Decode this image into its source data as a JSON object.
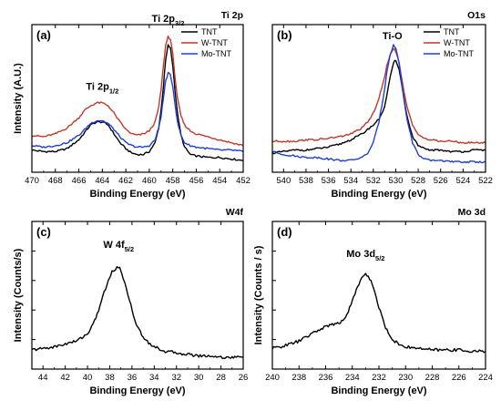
{
  "chart_data": [
    {
      "id": "a",
      "type": "line",
      "letter": "(a)",
      "title": "Ti 2p",
      "xlabel": "Binding Energy (eV)",
      "ylabel": "Intensity (A.U.)",
      "xlim": [
        470,
        452
      ],
      "xticks": [
        470,
        468,
        466,
        464,
        462,
        460,
        458,
        456,
        454,
        452
      ],
      "ylim": [
        0,
        1
      ],
      "show_y_ticks": false,
      "legend": "top-right",
      "annotations": [
        {
          "text": "Ti 2p",
          "sub": "1/2",
          "x": 464.0,
          "y": 0.56
        },
        {
          "text": "Ti 2p",
          "sub": "3/2",
          "x": 458.4,
          "y": 1.02
        }
      ],
      "series": [
        {
          "name": "TNT",
          "color": "#000000",
          "x": [
            470,
            469,
            468,
            467,
            466,
            465.5,
            465,
            464.5,
            464,
            463.5,
            463,
            462.5,
            462,
            461.5,
            461,
            460.5,
            460,
            459.5,
            459.2,
            459,
            458.8,
            458.6,
            458.4,
            458.2,
            458,
            457.8,
            457.6,
            457.3,
            457,
            456.5,
            456,
            455,
            454,
            453,
            452
          ],
          "y": [
            0.15,
            0.14,
            0.14,
            0.16,
            0.22,
            0.27,
            0.32,
            0.34,
            0.34,
            0.32,
            0.26,
            0.2,
            0.16,
            0.13,
            0.12,
            0.12,
            0.14,
            0.2,
            0.3,
            0.42,
            0.58,
            0.76,
            0.86,
            0.84,
            0.72,
            0.55,
            0.4,
            0.25,
            0.17,
            0.12,
            0.11,
            0.1,
            0.1,
            0.09,
            0.08
          ]
        },
        {
          "name": "W-TNT",
          "color": "#c0392b",
          "x": [
            470,
            469,
            468,
            467,
            466,
            465.5,
            465,
            464.5,
            464,
            463.5,
            463,
            462.5,
            462,
            461.5,
            461,
            460.5,
            460,
            459.5,
            459.2,
            459,
            458.8,
            458.6,
            458.4,
            458.2,
            458,
            457.8,
            457.6,
            457.3,
            457,
            456.5,
            456,
            455,
            454,
            453,
            452
          ],
          "y": [
            0.25,
            0.24,
            0.26,
            0.3,
            0.37,
            0.42,
            0.45,
            0.47,
            0.47,
            0.45,
            0.4,
            0.34,
            0.29,
            0.26,
            0.25,
            0.26,
            0.28,
            0.34,
            0.44,
            0.56,
            0.72,
            0.86,
            0.92,
            0.9,
            0.8,
            0.64,
            0.5,
            0.38,
            0.32,
            0.28,
            0.26,
            0.24,
            0.22,
            0.2,
            0.18
          ]
        },
        {
          "name": "Mo-TNT",
          "color": "#1f3fd6",
          "x": [
            470,
            469,
            468,
            467,
            466,
            465.5,
            465,
            464.5,
            464,
            463.5,
            463,
            462.5,
            462,
            461.5,
            461,
            460.5,
            460,
            459.5,
            459.2,
            459,
            458.8,
            458.6,
            458.4,
            458.2,
            458,
            457.8,
            457.6,
            457.3,
            457,
            456.5,
            456,
            455,
            454,
            453,
            452
          ],
          "y": [
            0.18,
            0.17,
            0.18,
            0.2,
            0.25,
            0.29,
            0.33,
            0.35,
            0.35,
            0.33,
            0.29,
            0.24,
            0.2,
            0.18,
            0.17,
            0.17,
            0.18,
            0.22,
            0.3,
            0.38,
            0.5,
            0.62,
            0.67,
            0.66,
            0.58,
            0.46,
            0.34,
            0.25,
            0.2,
            0.18,
            0.17,
            0.16,
            0.15,
            0.15,
            0.14
          ]
        }
      ]
    },
    {
      "id": "b",
      "type": "line",
      "letter": "(b)",
      "title": "O1s",
      "xlabel": "Binding Energy (eV)",
      "ylabel": "",
      "xlim": [
        541,
        522
      ],
      "xticks": [
        540,
        538,
        536,
        534,
        532,
        530,
        528,
        526,
        524,
        522
      ],
      "ylim": [
        0,
        1
      ],
      "show_y_ticks": false,
      "legend": "top-right",
      "annotations": [
        {
          "text": "Ti-O",
          "sub": "",
          "x": 530.3,
          "y": 0.9
        }
      ],
      "series": [
        {
          "name": "TNT",
          "color": "#000000",
          "x": [
            541,
            540,
            539,
            538,
            537,
            536,
            535,
            534,
            533,
            532.5,
            532,
            531.5,
            531,
            530.8,
            530.5,
            530.2,
            530,
            529.7,
            529.4,
            529,
            528.5,
            528,
            527.5,
            527,
            526,
            525,
            524,
            523,
            522
          ],
          "y": [
            0.13,
            0.14,
            0.15,
            0.15,
            0.16,
            0.17,
            0.19,
            0.22,
            0.26,
            0.29,
            0.32,
            0.36,
            0.44,
            0.52,
            0.64,
            0.74,
            0.76,
            0.7,
            0.56,
            0.38,
            0.24,
            0.18,
            0.16,
            0.15,
            0.15,
            0.14,
            0.14,
            0.15,
            0.15
          ]
        },
        {
          "name": "W-TNT",
          "color": "#c0392b",
          "x": [
            541,
            540,
            539,
            538,
            537,
            536,
            535,
            534,
            533,
            532.5,
            532,
            531.5,
            531,
            530.8,
            530.5,
            530.2,
            530,
            529.7,
            529.4,
            529,
            528.5,
            528,
            527.5,
            527,
            526,
            525,
            524,
            523,
            522
          ],
          "y": [
            0.21,
            0.21,
            0.21,
            0.22,
            0.22,
            0.23,
            0.24,
            0.26,
            0.3,
            0.34,
            0.4,
            0.5,
            0.64,
            0.72,
            0.8,
            0.84,
            0.82,
            0.74,
            0.6,
            0.44,
            0.32,
            0.26,
            0.23,
            0.22,
            0.21,
            0.21,
            0.2,
            0.2,
            0.2
          ]
        },
        {
          "name": "Mo-TNT",
          "color": "#1f3fd6",
          "x": [
            541,
            540,
            539,
            538,
            537,
            536,
            535,
            534,
            533,
            532.5,
            532,
            531.5,
            531,
            530.8,
            530.5,
            530.2,
            530,
            529.7,
            529.4,
            529,
            528.5,
            528,
            527.5,
            527,
            526,
            525,
            524,
            523,
            522
          ],
          "y": [
            0.14,
            0.12,
            0.11,
            0.1,
            0.1,
            0.09,
            0.08,
            0.08,
            0.1,
            0.13,
            0.2,
            0.34,
            0.56,
            0.68,
            0.8,
            0.86,
            0.84,
            0.74,
            0.56,
            0.36,
            0.2,
            0.12,
            0.09,
            0.08,
            0.08,
            0.07,
            0.07,
            0.07,
            0.07
          ]
        }
      ]
    },
    {
      "id": "c",
      "type": "line",
      "letter": "(c)",
      "title": "W4f",
      "xlabel": "Binding Energy (eV)",
      "ylabel": "Intensity (Counts/s)",
      "xlim": [
        45,
        26
      ],
      "xticks": [
        44,
        42,
        40,
        38,
        36,
        34,
        32,
        30,
        28,
        26
      ],
      "ylim": [
        0,
        1
      ],
      "show_y_ticks": true,
      "legend": "",
      "annotations": [
        {
          "text": "W 4f",
          "sub": "5/2",
          "x": 37.2,
          "y": 0.82
        }
      ],
      "series": [
        {
          "name": "",
          "color": "#000000",
          "x": [
            45,
            44,
            43,
            42,
            41,
            40,
            39.5,
            39,
            38.5,
            38,
            37.8,
            37.5,
            37.2,
            37,
            36.8,
            36.5,
            36.2,
            36,
            35.5,
            35,
            34.5,
            34,
            33,
            32,
            31,
            30,
            29,
            28,
            27,
            26
          ],
          "y": [
            0.13,
            0.14,
            0.15,
            0.17,
            0.19,
            0.24,
            0.3,
            0.4,
            0.52,
            0.62,
            0.66,
            0.68,
            0.69,
            0.67,
            0.62,
            0.55,
            0.46,
            0.4,
            0.28,
            0.22,
            0.18,
            0.15,
            0.12,
            0.11,
            0.1,
            0.09,
            0.09,
            0.08,
            0.08,
            0.08
          ]
        }
      ]
    },
    {
      "id": "d",
      "type": "line",
      "letter": "(d)",
      "title": "Mo 3d",
      "xlabel": "Binding Energy (eV)",
      "ylabel": "Intensity (Counts / s)",
      "xlim": [
        240,
        224
      ],
      "xticks": [
        240,
        238,
        236,
        234,
        232,
        230,
        228,
        226,
        224
      ],
      "ylim": [
        0,
        1
      ],
      "show_y_ticks": true,
      "legend": "",
      "annotations": [
        {
          "text": "Mo 3d",
          "sub": "5/2",
          "x": 233.0,
          "y": 0.76
        }
      ],
      "series": [
        {
          "name": "",
          "color": "#000000",
          "x": [
            240,
            239,
            238,
            237,
            236,
            235.5,
            235,
            234.5,
            234,
            233.6,
            233.3,
            233,
            232.8,
            232.5,
            232.2,
            232,
            231.5,
            231,
            230.5,
            230,
            229,
            228,
            227,
            226,
            225,
            224
          ],
          "y": [
            0.14,
            0.16,
            0.19,
            0.24,
            0.29,
            0.3,
            0.31,
            0.35,
            0.46,
            0.56,
            0.62,
            0.64,
            0.63,
            0.58,
            0.48,
            0.42,
            0.28,
            0.2,
            0.17,
            0.15,
            0.14,
            0.13,
            0.13,
            0.13,
            0.12,
            0.12
          ]
        }
      ]
    }
  ]
}
